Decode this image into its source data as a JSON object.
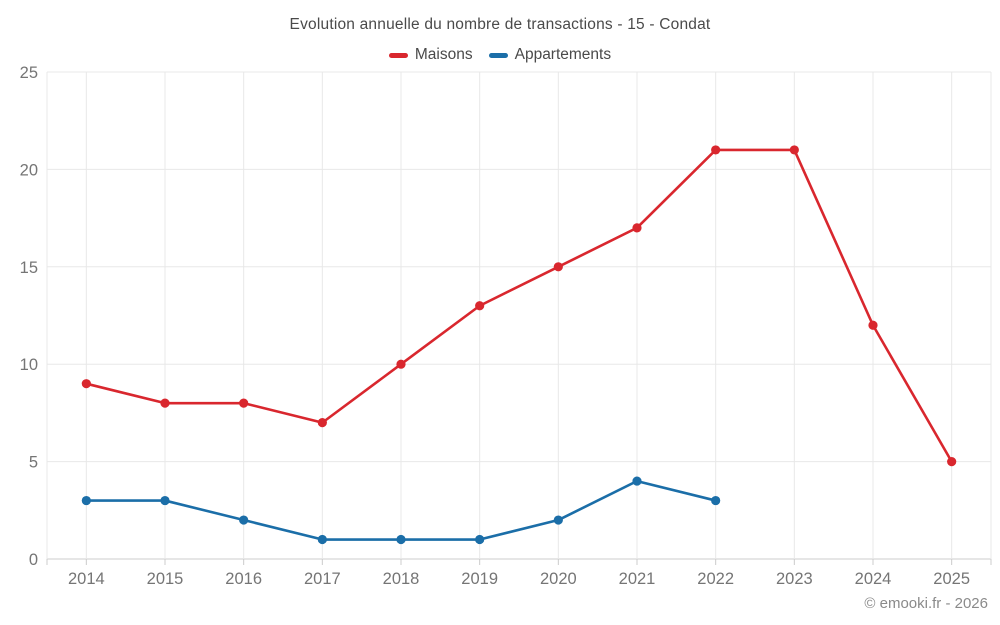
{
  "chart_data": {
    "type": "line",
    "title": "Evolution annuelle du nombre de transactions - 15 - Condat",
    "x": [
      "2014",
      "2015",
      "2016",
      "2017",
      "2018",
      "2019",
      "2020",
      "2021",
      "2022",
      "2023",
      "2024",
      "2025"
    ],
    "series": [
      {
        "name": "Maisons",
        "color": "#d9272e",
        "values": [
          9,
          8,
          8,
          7,
          10,
          13,
          15,
          17,
          21,
          21,
          12,
          5
        ]
      },
      {
        "name": "Appartements",
        "color": "#1b6ea8",
        "values": [
          3,
          3,
          2,
          1,
          1,
          1,
          2,
          4,
          3,
          null,
          null,
          null
        ]
      }
    ],
    "ylim": [
      0,
      25
    ],
    "yticks": [
      0,
      5,
      10,
      15,
      20,
      25
    ],
    "grid": true,
    "legend_position": "top",
    "xlabel": "",
    "ylabel": ""
  },
  "colors": {
    "grid": "#e8e8e8",
    "axis": "#cccccc",
    "tick_label": "#757575",
    "title": "#4a4a4a",
    "footer": "#8a8a8a"
  },
  "footer": {
    "copyright": "© emooki.fr - 2026"
  }
}
